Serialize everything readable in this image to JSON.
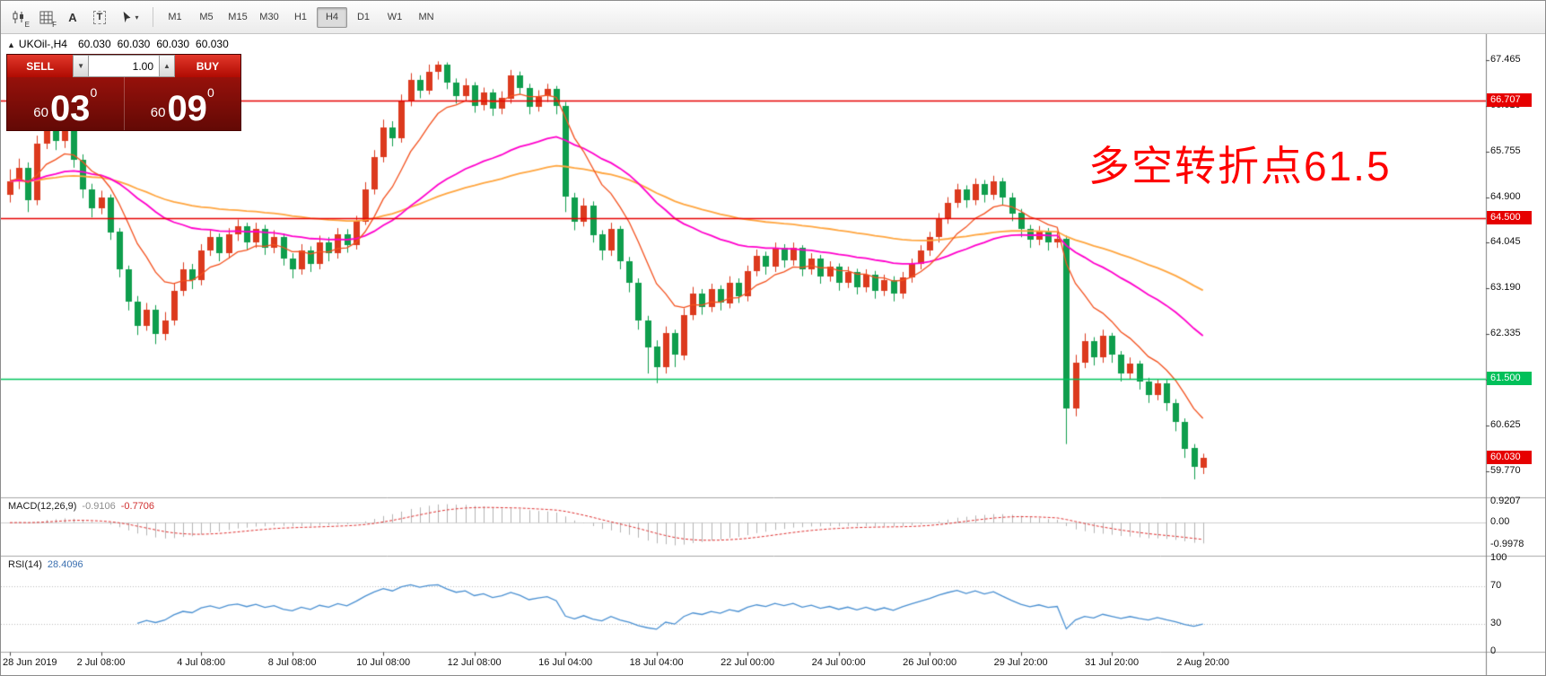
{
  "toolbar": {
    "icons": [
      {
        "name": "candlestick-chart-icon",
        "badge": "E"
      },
      {
        "name": "grid-icon",
        "badge": "F"
      },
      {
        "name": "text-a-icon",
        "label": "A"
      },
      {
        "name": "text-t-icon",
        "label": "T"
      },
      {
        "name": "cursor-icon",
        "caret": "▾"
      }
    ],
    "timeframes": [
      "M1",
      "M5",
      "M15",
      "M30",
      "H1",
      "H4",
      "D1",
      "W1",
      "MN"
    ],
    "active_timeframe": "H4"
  },
  "chart": {
    "collapse_arrow": "▲",
    "symbol": "UKOil-,H4",
    "ohlc": [
      "60.030",
      "60.030",
      "60.030",
      "60.030"
    ],
    "annotation": {
      "text": "多空转折点61.5",
      "color": "#fe0000"
    }
  },
  "trade_panel": {
    "sell_label": "SELL",
    "buy_label": "BUY",
    "volume": "1.00",
    "volume_down_icon": "▼",
    "volume_up_icon": "▲",
    "sell_price": {
      "prefix": "60",
      "main": "03",
      "sup": "0"
    },
    "buy_price": {
      "prefix": "60",
      "main": "09",
      "sup": "0"
    }
  },
  "chart_data": {
    "type": "candlestick",
    "symbol": "UKOil-",
    "timeframe": "H4",
    "up_color": "#dc3a1e",
    "down_color": "#0f9e4d",
    "price_range": {
      "min": 59.3,
      "max": 67.95
    },
    "y_ticks": [
      67.465,
      66.61,
      65.755,
      64.9,
      64.045,
      63.19,
      62.335,
      61.48,
      60.625,
      59.77
    ],
    "h_lines": [
      {
        "price": 66.707,
        "color": "#e60000",
        "badge": "66.707",
        "badge_color": "#e60000"
      },
      {
        "price": 64.5,
        "color": "#e60000",
        "badge": "64.500",
        "badge_color": "#e60000"
      },
      {
        "price": 61.5,
        "color": "#00c45c",
        "badge": "61.500",
        "badge_color": "#00c05a"
      }
    ],
    "current_price": {
      "value": 60.03,
      "badge": "60.030",
      "badge_color": "#e60000"
    },
    "ma_lines": [
      {
        "type": "ema",
        "period": 72,
        "color": "#ffa640",
        "width": 1.8
      },
      {
        "type": "ema",
        "period": 34,
        "color": "#ff00cc",
        "width": 1.8
      },
      {
        "type": "ema",
        "period": 9,
        "color": "#f4511e",
        "width": 1.3
      }
    ],
    "candles": [
      [
        64.95,
        65.42,
        64.8,
        65.2
      ],
      [
        65.2,
        65.62,
        65.05,
        65.45
      ],
      [
        65.45,
        65.55,
        64.62,
        64.85
      ],
      [
        64.85,
        66.05,
        64.75,
        65.9
      ],
      [
        65.9,
        66.48,
        65.8,
        66.3
      ],
      [
        66.3,
        66.42,
        65.78,
        65.95
      ],
      [
        65.95,
        66.32,
        65.82,
        66.15
      ],
      [
        66.15,
        66.22,
        65.45,
        65.6
      ],
      [
        65.6,
        65.7,
        64.88,
        65.05
      ],
      [
        65.05,
        65.15,
        64.52,
        64.7
      ],
      [
        64.7,
        65.02,
        64.58,
        64.9
      ],
      [
        64.9,
        64.95,
        64.1,
        64.25
      ],
      [
        64.25,
        64.32,
        63.4,
        63.55
      ],
      [
        63.55,
        63.62,
        62.78,
        62.95
      ],
      [
        62.95,
        63.05,
        62.32,
        62.5
      ],
      [
        62.5,
        62.92,
        62.4,
        62.8
      ],
      [
        62.8,
        62.88,
        62.15,
        62.35
      ],
      [
        62.35,
        62.75,
        62.22,
        62.6
      ],
      [
        62.6,
        63.28,
        62.5,
        63.15
      ],
      [
        63.15,
        63.68,
        63.05,
        63.55
      ],
      [
        63.55,
        63.65,
        63.18,
        63.35
      ],
      [
        63.35,
        64.02,
        63.25,
        63.9
      ],
      [
        63.9,
        64.28,
        63.8,
        64.15
      ],
      [
        64.15,
        64.22,
        63.7,
        63.85
      ],
      [
        63.85,
        64.32,
        63.75,
        64.2
      ],
      [
        64.2,
        64.48,
        64.08,
        64.35
      ],
      [
        64.35,
        64.42,
        63.92,
        64.05
      ],
      [
        64.05,
        64.42,
        63.95,
        64.3
      ],
      [
        64.3,
        64.38,
        63.82,
        63.95
      ],
      [
        63.95,
        64.28,
        63.85,
        64.15
      ],
      [
        64.15,
        64.22,
        63.62,
        63.75
      ],
      [
        63.75,
        63.85,
        63.38,
        63.55
      ],
      [
        63.55,
        64.02,
        63.45,
        63.9
      ],
      [
        63.9,
        63.98,
        63.5,
        63.65
      ],
      [
        63.65,
        64.18,
        63.55,
        64.05
      ],
      [
        64.05,
        64.15,
        63.7,
        63.85
      ],
      [
        63.85,
        64.32,
        63.75,
        64.2
      ],
      [
        64.2,
        64.3,
        63.86,
        64.0
      ],
      [
        64.0,
        64.55,
        63.92,
        64.45
      ],
      [
        64.45,
        65.18,
        64.38,
        65.05
      ],
      [
        65.05,
        65.78,
        64.95,
        65.65
      ],
      [
        65.65,
        66.35,
        65.55,
        66.2
      ],
      [
        66.2,
        66.32,
        65.85,
        66.0
      ],
      [
        66.0,
        66.82,
        65.92,
        66.7
      ],
      [
        66.7,
        67.22,
        66.6,
        67.1
      ],
      [
        67.1,
        67.18,
        66.75,
        66.9
      ],
      [
        66.9,
        67.38,
        66.82,
        67.25
      ],
      [
        67.25,
        67.44,
        67.1,
        67.38
      ],
      [
        67.38,
        67.42,
        66.92,
        67.05
      ],
      [
        67.05,
        67.12,
        66.65,
        66.8
      ],
      [
        66.8,
        67.12,
        66.7,
        67.0
      ],
      [
        67.0,
        67.05,
        66.48,
        66.62
      ],
      [
        66.62,
        66.95,
        66.52,
        66.85
      ],
      [
        66.85,
        66.92,
        66.42,
        66.55
      ],
      [
        66.55,
        66.88,
        66.45,
        66.75
      ],
      [
        66.75,
        67.28,
        66.65,
        67.18
      ],
      [
        67.18,
        67.25,
        66.82,
        66.95
      ],
      [
        66.95,
        67.02,
        66.45,
        66.6
      ],
      [
        66.6,
        66.9,
        66.5,
        66.78
      ],
      [
        66.78,
        67.02,
        66.68,
        66.92
      ],
      [
        66.92,
        66.98,
        66.45,
        66.6
      ],
      [
        66.6,
        66.68,
        64.62,
        64.9
      ],
      [
        64.9,
        64.98,
        64.28,
        64.45
      ],
      [
        64.45,
        64.88,
        64.35,
        64.75
      ],
      [
        64.75,
        64.82,
        64.05,
        64.2
      ],
      [
        64.2,
        64.28,
        63.72,
        63.9
      ],
      [
        63.9,
        64.42,
        63.8,
        64.3
      ],
      [
        64.3,
        64.36,
        63.55,
        63.7
      ],
      [
        63.7,
        63.78,
        63.12,
        63.3
      ],
      [
        63.3,
        63.38,
        62.42,
        62.6
      ],
      [
        62.6,
        62.68,
        61.6,
        62.1
      ],
      [
        62.1,
        62.22,
        61.42,
        61.72
      ],
      [
        61.72,
        62.48,
        61.6,
        62.35
      ],
      [
        62.35,
        62.42,
        61.72,
        61.95
      ],
      [
        61.95,
        62.82,
        61.85,
        62.7
      ],
      [
        62.7,
        63.22,
        62.6,
        63.1
      ],
      [
        63.1,
        63.18,
        62.7,
        62.85
      ],
      [
        62.85,
        63.28,
        62.75,
        63.18
      ],
      [
        63.18,
        63.25,
        62.78,
        62.92
      ],
      [
        62.92,
        63.42,
        62.82,
        63.3
      ],
      [
        63.3,
        63.38,
        62.92,
        63.05
      ],
      [
        63.05,
        63.62,
        62.95,
        63.52
      ],
      [
        63.52,
        63.92,
        63.42,
        63.8
      ],
      [
        63.8,
        63.88,
        63.45,
        63.6
      ],
      [
        63.6,
        64.05,
        63.5,
        63.95
      ],
      [
        63.95,
        64.02,
        63.58,
        63.72
      ],
      [
        63.72,
        64.05,
        63.62,
        63.95
      ],
      [
        63.95,
        64.0,
        63.42,
        63.55
      ],
      [
        63.55,
        63.85,
        63.45,
        63.75
      ],
      [
        63.75,
        63.82,
        63.28,
        63.42
      ],
      [
        63.42,
        63.7,
        63.32,
        63.6
      ],
      [
        63.6,
        63.66,
        63.15,
        63.3
      ],
      [
        63.3,
        63.6,
        63.2,
        63.5
      ],
      [
        63.5,
        63.56,
        63.08,
        63.22
      ],
      [
        63.22,
        63.55,
        63.12,
        63.45
      ],
      [
        63.45,
        63.52,
        63.0,
        63.15
      ],
      [
        63.15,
        63.45,
        63.05,
        63.35
      ],
      [
        63.35,
        63.42,
        62.95,
        63.1
      ],
      [
        63.1,
        63.5,
        63.0,
        63.4
      ],
      [
        63.4,
        63.75,
        63.3,
        63.65
      ],
      [
        63.65,
        64.0,
        63.55,
        63.9
      ],
      [
        63.9,
        64.25,
        63.8,
        64.15
      ],
      [
        64.15,
        64.6,
        64.05,
        64.5
      ],
      [
        64.5,
        64.9,
        64.4,
        64.8
      ],
      [
        64.8,
        65.15,
        64.7,
        65.05
      ],
      [
        65.05,
        65.12,
        64.7,
        64.85
      ],
      [
        64.85,
        65.25,
        64.75,
        65.15
      ],
      [
        65.15,
        65.22,
        64.8,
        64.95
      ],
      [
        64.95,
        65.3,
        64.85,
        65.2
      ],
      [
        65.2,
        65.26,
        64.75,
        64.9
      ],
      [
        64.9,
        64.98,
        64.45,
        64.6
      ],
      [
        64.6,
        64.68,
        64.15,
        64.3
      ],
      [
        64.3,
        64.38,
        63.95,
        64.1
      ],
      [
        64.1,
        64.36,
        64.0,
        64.25
      ],
      [
        64.25,
        64.32,
        63.9,
        64.05
      ],
      [
        64.05,
        64.24,
        63.95,
        64.12
      ],
      [
        64.12,
        64.18,
        60.28,
        60.95
      ],
      [
        60.95,
        61.95,
        60.8,
        61.8
      ],
      [
        61.8,
        62.35,
        61.7,
        62.2
      ],
      [
        62.2,
        62.28,
        61.75,
        61.9
      ],
      [
        61.9,
        62.42,
        61.8,
        62.3
      ],
      [
        62.3,
        62.36,
        61.8,
        61.95
      ],
      [
        61.95,
        62.02,
        61.45,
        61.6
      ],
      [
        61.6,
        61.9,
        61.5,
        61.78
      ],
      [
        61.78,
        61.84,
        61.3,
        61.45
      ],
      [
        61.45,
        61.52,
        61.05,
        61.2
      ],
      [
        61.2,
        61.5,
        61.1,
        61.42
      ],
      [
        61.42,
        61.48,
        60.9,
        61.05
      ],
      [
        61.05,
        61.12,
        60.52,
        60.7
      ],
      [
        60.7,
        60.76,
        60.02,
        60.2
      ],
      [
        60.2,
        60.28,
        59.62,
        59.85
      ],
      [
        59.85,
        60.1,
        59.72,
        60.03
      ]
    ],
    "time_ticks": [
      {
        "label": "28 Jun 2019",
        "index": 0
      },
      {
        "label": "2 Jul 08:00",
        "index": 10
      },
      {
        "label": "4 Jul 08:00",
        "index": 21
      },
      {
        "label": "8 Jul 08:00",
        "index": 31
      },
      {
        "label": "10 Jul 08:00",
        "index": 41
      },
      {
        "label": "12 Jul 08:00",
        "index": 51
      },
      {
        "label": "16 Jul 04:00",
        "index": 61
      },
      {
        "label": "18 Jul 04:00",
        "index": 71
      },
      {
        "label": "22 Jul 00:00",
        "index": 81
      },
      {
        "label": "24 Jul 00:00",
        "index": 91
      },
      {
        "label": "26 Jul 00:00",
        "index": 101
      },
      {
        "label": "29 Jul 20:00",
        "index": 111
      },
      {
        "label": "31 Jul 20:00",
        "index": 121
      },
      {
        "label": "2 Aug 20:00",
        "index": 131
      }
    ],
    "indicators": {
      "macd": {
        "label": "MACD(12,26,9)",
        "values": [
          "-0.9106",
          "-0.7706"
        ],
        "params": [
          12,
          26,
          9
        ],
        "scale": [
          {
            "label": "0.9207",
            "value": 0.9207
          },
          {
            "label": "0.00",
            "value": 0
          },
          {
            "label": "-0.9978",
            "value": -0.9978
          }
        ],
        "range": {
          "min": -1.45,
          "max": 1.02
        },
        "histogram_color": "#b4b4b4",
        "signal_color": "#e03131"
      },
      "rsi": {
        "label": "RSI(14)",
        "value": "28.4096",
        "period": 14,
        "scale": [
          {
            "label": "100",
            "value": 100
          },
          {
            "label": "70",
            "value": 70
          },
          {
            "label": "30",
            "value": 30
          },
          {
            "label": "0",
            "value": 0
          }
        ],
        "levels": [
          70,
          30
        ],
        "color": "#4a90d2",
        "range": {
          "min": 0,
          "max": 100
        }
      }
    }
  }
}
